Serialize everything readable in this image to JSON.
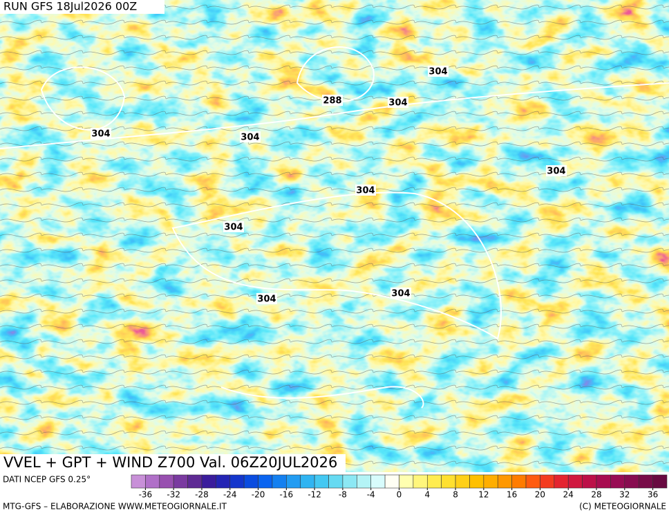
{
  "header": {
    "run": "RUN GFS 18Jul2026 00Z"
  },
  "map": {
    "title": "VVEL + GPT + WIND Z700 Val. 06Z20JUL2026",
    "contour_labels": [
      288,
      304,
      304,
      304,
      304,
      304,
      304,
      304,
      304,
      304
    ]
  },
  "legend": {
    "source": "DATI NCEP GFS 0.25°",
    "ticks": [
      -36,
      -32,
      -28,
      -24,
      -20,
      -16,
      -12,
      -8,
      -4,
      0,
      4,
      8,
      12,
      16,
      20,
      24,
      28,
      32,
      36
    ],
    "colors": [
      "#c890d8",
      "#b070c8",
      "#9850b0",
      "#7a3aa0",
      "#5e2a94",
      "#3a1c9c",
      "#2424b4",
      "#1436cc",
      "#0a4ce0",
      "#0a64f0",
      "#1480f0",
      "#229cf2",
      "#30b4f2",
      "#44c8f2",
      "#66daf2",
      "#8ce8f4",
      "#b4f4f6",
      "#d8fcfc",
      "#fffff4",
      "#ffffb0",
      "#fff67c",
      "#ffec50",
      "#ffe030",
      "#ffd018",
      "#ffc000",
      "#ffae00",
      "#ff9800",
      "#ff7c00",
      "#ff5c10",
      "#f43c20",
      "#e42430",
      "#d01840",
      "#bc1048",
      "#a80c50",
      "#980c54",
      "#880c50",
      "#780c48",
      "#680a40"
    ]
  },
  "footer": {
    "left": "MTG-GFS – ELABORAZIONE WWW.METEOGIORNALE.IT",
    "right": "(C) METEOGIORNALE"
  }
}
